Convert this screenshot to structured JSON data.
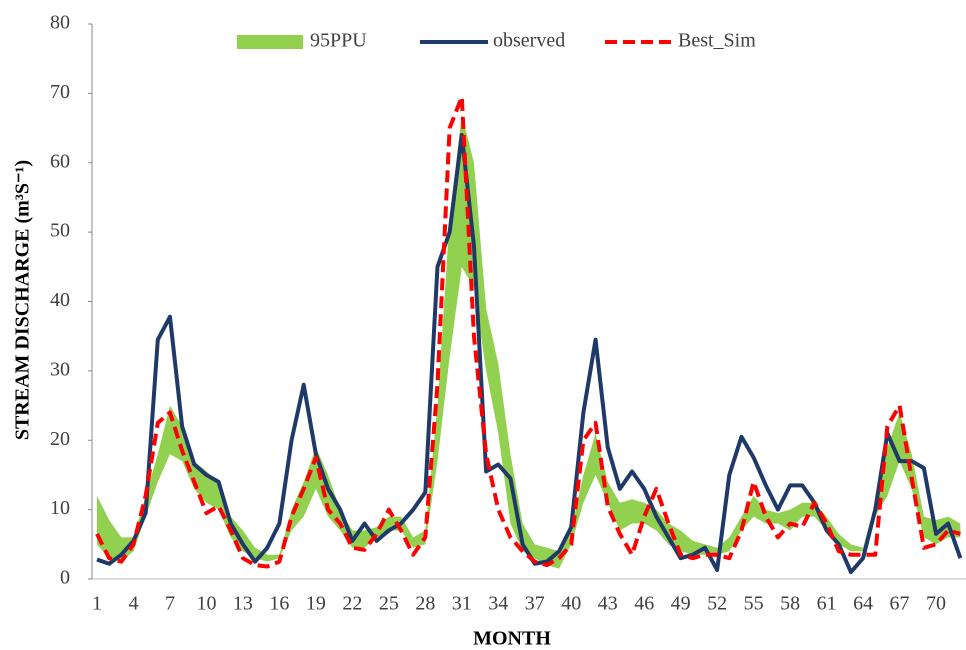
{
  "chart_data": {
    "type": "band-line",
    "y_label": "STREAM DISCHARGE (m³S⁻¹)",
    "x_label": "MONTH",
    "categories": [
      1,
      null,
      null,
      4,
      null,
      null,
      7,
      null,
      null,
      10,
      null,
      null,
      13,
      null,
      null,
      16,
      null,
      null,
      19,
      null,
      null,
      22,
      null,
      null,
      25,
      null,
      null,
      28,
      null,
      null,
      31,
      null,
      null,
      34,
      null,
      null,
      37,
      null,
      null,
      40,
      null,
      null,
      43,
      null,
      null,
      46,
      null,
      null,
      49,
      null,
      null,
      52,
      null,
      null,
      55,
      null,
      null,
      58,
      null,
      null,
      61,
      null,
      null,
      64,
      null,
      null,
      67,
      null,
      null,
      70,
      null,
      null
    ],
    "series": [
      {
        "name": "95PPU",
        "color": "#92d050",
        "lower": [
          5,
          3,
          2.5,
          4,
          9,
          14,
          18,
          17,
          13,
          11,
          10,
          6,
          4,
          3,
          2.5,
          3,
          7,
          9,
          13,
          9,
          7,
          4.5,
          4.5,
          6,
          7,
          7,
          4.5,
          5,
          17,
          32,
          45,
          42,
          30,
          21,
          8,
          4,
          3,
          2,
          1.5,
          5,
          11,
          15,
          11,
          7,
          8,
          8,
          7,
          5,
          4,
          3.5,
          3.5,
          3.5,
          4,
          7,
          9,
          8,
          8,
          7,
          9,
          9,
          7,
          5,
          4,
          4,
          9,
          12,
          17,
          13,
          6,
          5,
          6,
          6
        ],
        "upper": [
          12,
          8.5,
          6,
          6,
          12,
          18,
          25,
          22,
          17,
          15.5,
          14,
          9,
          7,
          4.5,
          3.5,
          3.5,
          10,
          14,
          19,
          15,
          10,
          7,
          7,
          7.5,
          9,
          9,
          6,
          7,
          25,
          52,
          67,
          60,
          39,
          31,
          18,
          8,
          5,
          4.5,
          4,
          7,
          15,
          21,
          14,
          11,
          11.5,
          11,
          10,
          8,
          7,
          5.5,
          5,
          4.5,
          6,
          9,
          12,
          10,
          9.5,
          10,
          11,
          11,
          9,
          6.5,
          5,
          4.5,
          11,
          19,
          24,
          18,
          9,
          8.5,
          9,
          8
        ]
      },
      {
        "name": "observed",
        "color": "#1f3a68",
        "values": [
          2.8,
          2.2,
          3.5,
          5.5,
          9.5,
          34.5,
          37.8,
          22,
          16.5,
          15,
          14,
          8,
          5,
          2.5,
          4.5,
          8,
          20,
          28,
          18,
          13,
          10,
          5.5,
          8,
          5.5,
          7,
          8,
          10,
          12.5,
          45,
          50,
          64,
          48,
          15.5,
          16.5,
          14.5,
          5,
          2.2,
          2.5,
          4,
          7.5,
          24,
          34.5,
          19,
          13,
          15.5,
          13,
          9,
          6,
          3,
          3.5,
          4.5,
          1.3,
          15,
          20.5,
          17.5,
          13.5,
          10,
          13.5,
          13.5,
          11,
          7,
          5,
          1,
          3,
          10,
          21,
          17,
          17,
          16,
          6.5,
          8,
          3
        ]
      },
      {
        "name": "Best_Sim",
        "color": "#ff0000",
        "values": [
          6.5,
          3,
          2.5,
          5,
          12,
          22.5,
          24,
          18.5,
          14,
          9.5,
          10.5,
          7,
          3,
          2,
          1.8,
          2.5,
          9,
          13,
          17.5,
          10,
          8,
          4.5,
          4.2,
          6.5,
          10,
          7,
          3.5,
          6,
          28,
          65,
          69.5,
          35,
          18,
          10,
          6,
          4,
          2.5,
          2,
          3,
          5,
          20,
          22.5,
          10.5,
          6.5,
          3.5,
          9,
          13,
          8,
          3.5,
          3,
          3.5,
          3.5,
          3,
          7,
          14,
          9,
          6,
          8,
          7.5,
          11,
          8,
          4,
          3.5,
          3.5,
          3.5,
          22,
          25,
          14.5,
          4.5,
          5,
          7,
          6.5
        ]
      }
    ],
    "ylim": [
      0,
      80
    ],
    "yticks": [
      0,
      10,
      20,
      30,
      40,
      50,
      60,
      70,
      80
    ],
    "grid": false,
    "legend": "top"
  }
}
